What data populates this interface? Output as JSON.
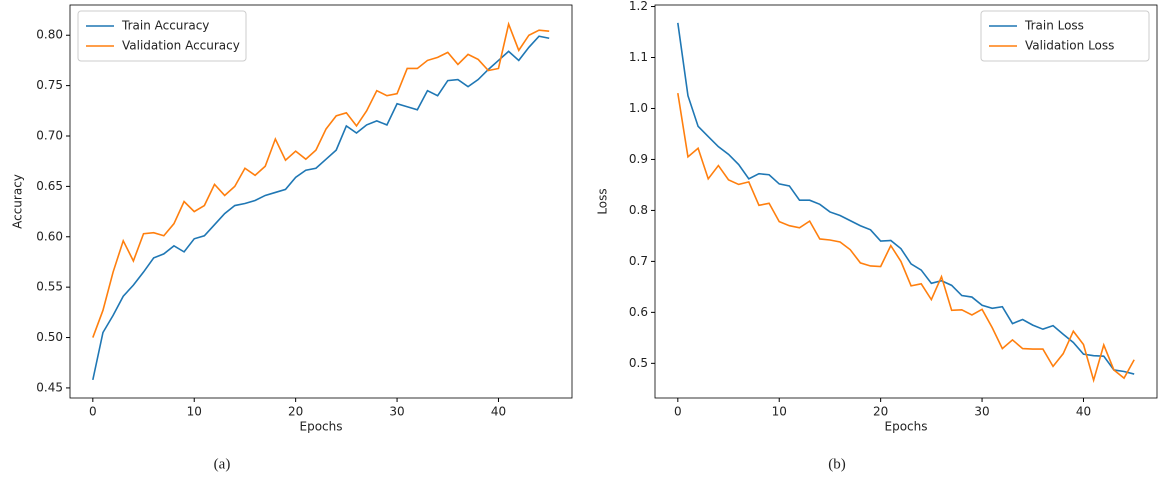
{
  "chart_data": [
    {
      "type": "line",
      "caption": "(a)",
      "x_label": "Epochs",
      "y_label": "Accuracy",
      "x": [
        0,
        1,
        2,
        3,
        4,
        5,
        6,
        7,
        8,
        9,
        10,
        11,
        12,
        13,
        14,
        15,
        16,
        17,
        18,
        19,
        20,
        21,
        22,
        23,
        24,
        25,
        26,
        27,
        28,
        29,
        30,
        31,
        32,
        33,
        34,
        35,
        36,
        37,
        38,
        39,
        40,
        41,
        42,
        43,
        44,
        45
      ],
      "series": [
        {
          "name": "Train Accuracy",
          "color": "#1f77b4",
          "values": [
            0.458,
            0.505,
            0.522,
            0.541,
            0.552,
            0.565,
            0.579,
            0.583,
            0.591,
            0.585,
            0.598,
            0.601,
            0.612,
            0.623,
            0.631,
            0.633,
            0.636,
            0.641,
            0.644,
            0.647,
            0.659,
            0.666,
            0.668,
            0.677,
            0.686,
            0.71,
            0.703,
            0.711,
            0.715,
            0.711,
            0.732,
            0.729,
            0.726,
            0.745,
            0.74,
            0.755,
            0.756,
            0.749,
            0.756,
            0.766,
            0.775,
            0.784,
            0.775,
            0.788,
            0.799,
            0.797
          ]
        },
        {
          "name": "Validation Accuracy",
          "color": "#ff7f0e",
          "values": [
            0.5,
            0.527,
            0.565,
            0.596,
            0.576,
            0.603,
            0.604,
            0.601,
            0.613,
            0.635,
            0.625,
            0.631,
            0.652,
            0.641,
            0.65,
            0.668,
            0.661,
            0.67,
            0.697,
            0.676,
            0.685,
            0.677,
            0.686,
            0.707,
            0.72,
            0.723,
            0.71,
            0.725,
            0.745,
            0.74,
            0.742,
            0.767,
            0.767,
            0.775,
            0.778,
            0.783,
            0.771,
            0.781,
            0.776,
            0.765,
            0.767,
            0.811,
            0.785,
            0.8,
            0.805,
            0.804
          ]
        }
      ],
      "xlim": [
        -2.25,
        47.25
      ],
      "xticks": [
        0,
        10,
        20,
        30,
        40
      ],
      "ylim": [
        0.44,
        0.83
      ],
      "yticks": [
        {
          "value": 0.45,
          "label": "0.45"
        },
        {
          "value": 0.5,
          "label": "0.50"
        },
        {
          "value": 0.55,
          "label": "0.55"
        },
        {
          "value": 0.6,
          "label": "0.60"
        },
        {
          "value": 0.65,
          "label": "0.65"
        },
        {
          "value": 0.7,
          "label": "0.70"
        },
        {
          "value": 0.75,
          "label": "0.75"
        },
        {
          "value": 0.8,
          "label": "0.80"
        }
      ],
      "legend": "upper left"
    },
    {
      "type": "line",
      "caption": "(b)",
      "x_label": "Epochs",
      "y_label": "Loss",
      "x": [
        0,
        1,
        2,
        3,
        4,
        5,
        6,
        7,
        8,
        9,
        10,
        11,
        12,
        13,
        14,
        15,
        16,
        17,
        18,
        19,
        20,
        21,
        22,
        23,
        24,
        25,
        26,
        27,
        28,
        29,
        30,
        31,
        32,
        33,
        34,
        35,
        36,
        37,
        38,
        39,
        40,
        41,
        42,
        43,
        44,
        45
      ],
      "series": [
        {
          "name": "Train Loss",
          "color": "#1f77b4",
          "values": [
            1.168,
            1.025,
            0.965,
            0.945,
            0.925,
            0.91,
            0.89,
            0.862,
            0.872,
            0.87,
            0.852,
            0.848,
            0.82,
            0.82,
            0.812,
            0.797,
            0.79,
            0.78,
            0.77,
            0.762,
            0.74,
            0.741,
            0.725,
            0.695,
            0.683,
            0.657,
            0.662,
            0.653,
            0.633,
            0.63,
            0.614,
            0.608,
            0.611,
            0.578,
            0.586,
            0.575,
            0.567,
            0.574,
            0.557,
            0.541,
            0.518,
            0.515,
            0.514,
            0.487,
            0.484,
            0.479
          ]
        },
        {
          "name": "Validation Loss",
          "color": "#ff7f0e",
          "values": [
            1.03,
            0.905,
            0.922,
            0.862,
            0.888,
            0.86,
            0.851,
            0.856,
            0.81,
            0.814,
            0.778,
            0.77,
            0.766,
            0.779,
            0.744,
            0.742,
            0.738,
            0.723,
            0.697,
            0.691,
            0.69,
            0.731,
            0.7,
            0.652,
            0.656,
            0.625,
            0.67,
            0.604,
            0.605,
            0.595,
            0.606,
            0.57,
            0.529,
            0.546,
            0.529,
            0.528,
            0.528,
            0.494,
            0.519,
            0.563,
            0.537,
            0.467,
            0.536,
            0.487,
            0.471,
            0.507
          ]
        }
      ],
      "xlim": [
        -2.25,
        47.25
      ],
      "xticks": [
        0,
        10,
        20,
        30,
        40
      ],
      "ylim": [
        0.432,
        1.203
      ],
      "yticks": [
        0.5,
        0.6,
        0.7,
        0.8,
        0.9,
        {
          "value": 1.0,
          "label": "1.0"
        },
        1.1,
        1.2
      ],
      "legend": "upper right"
    }
  ]
}
